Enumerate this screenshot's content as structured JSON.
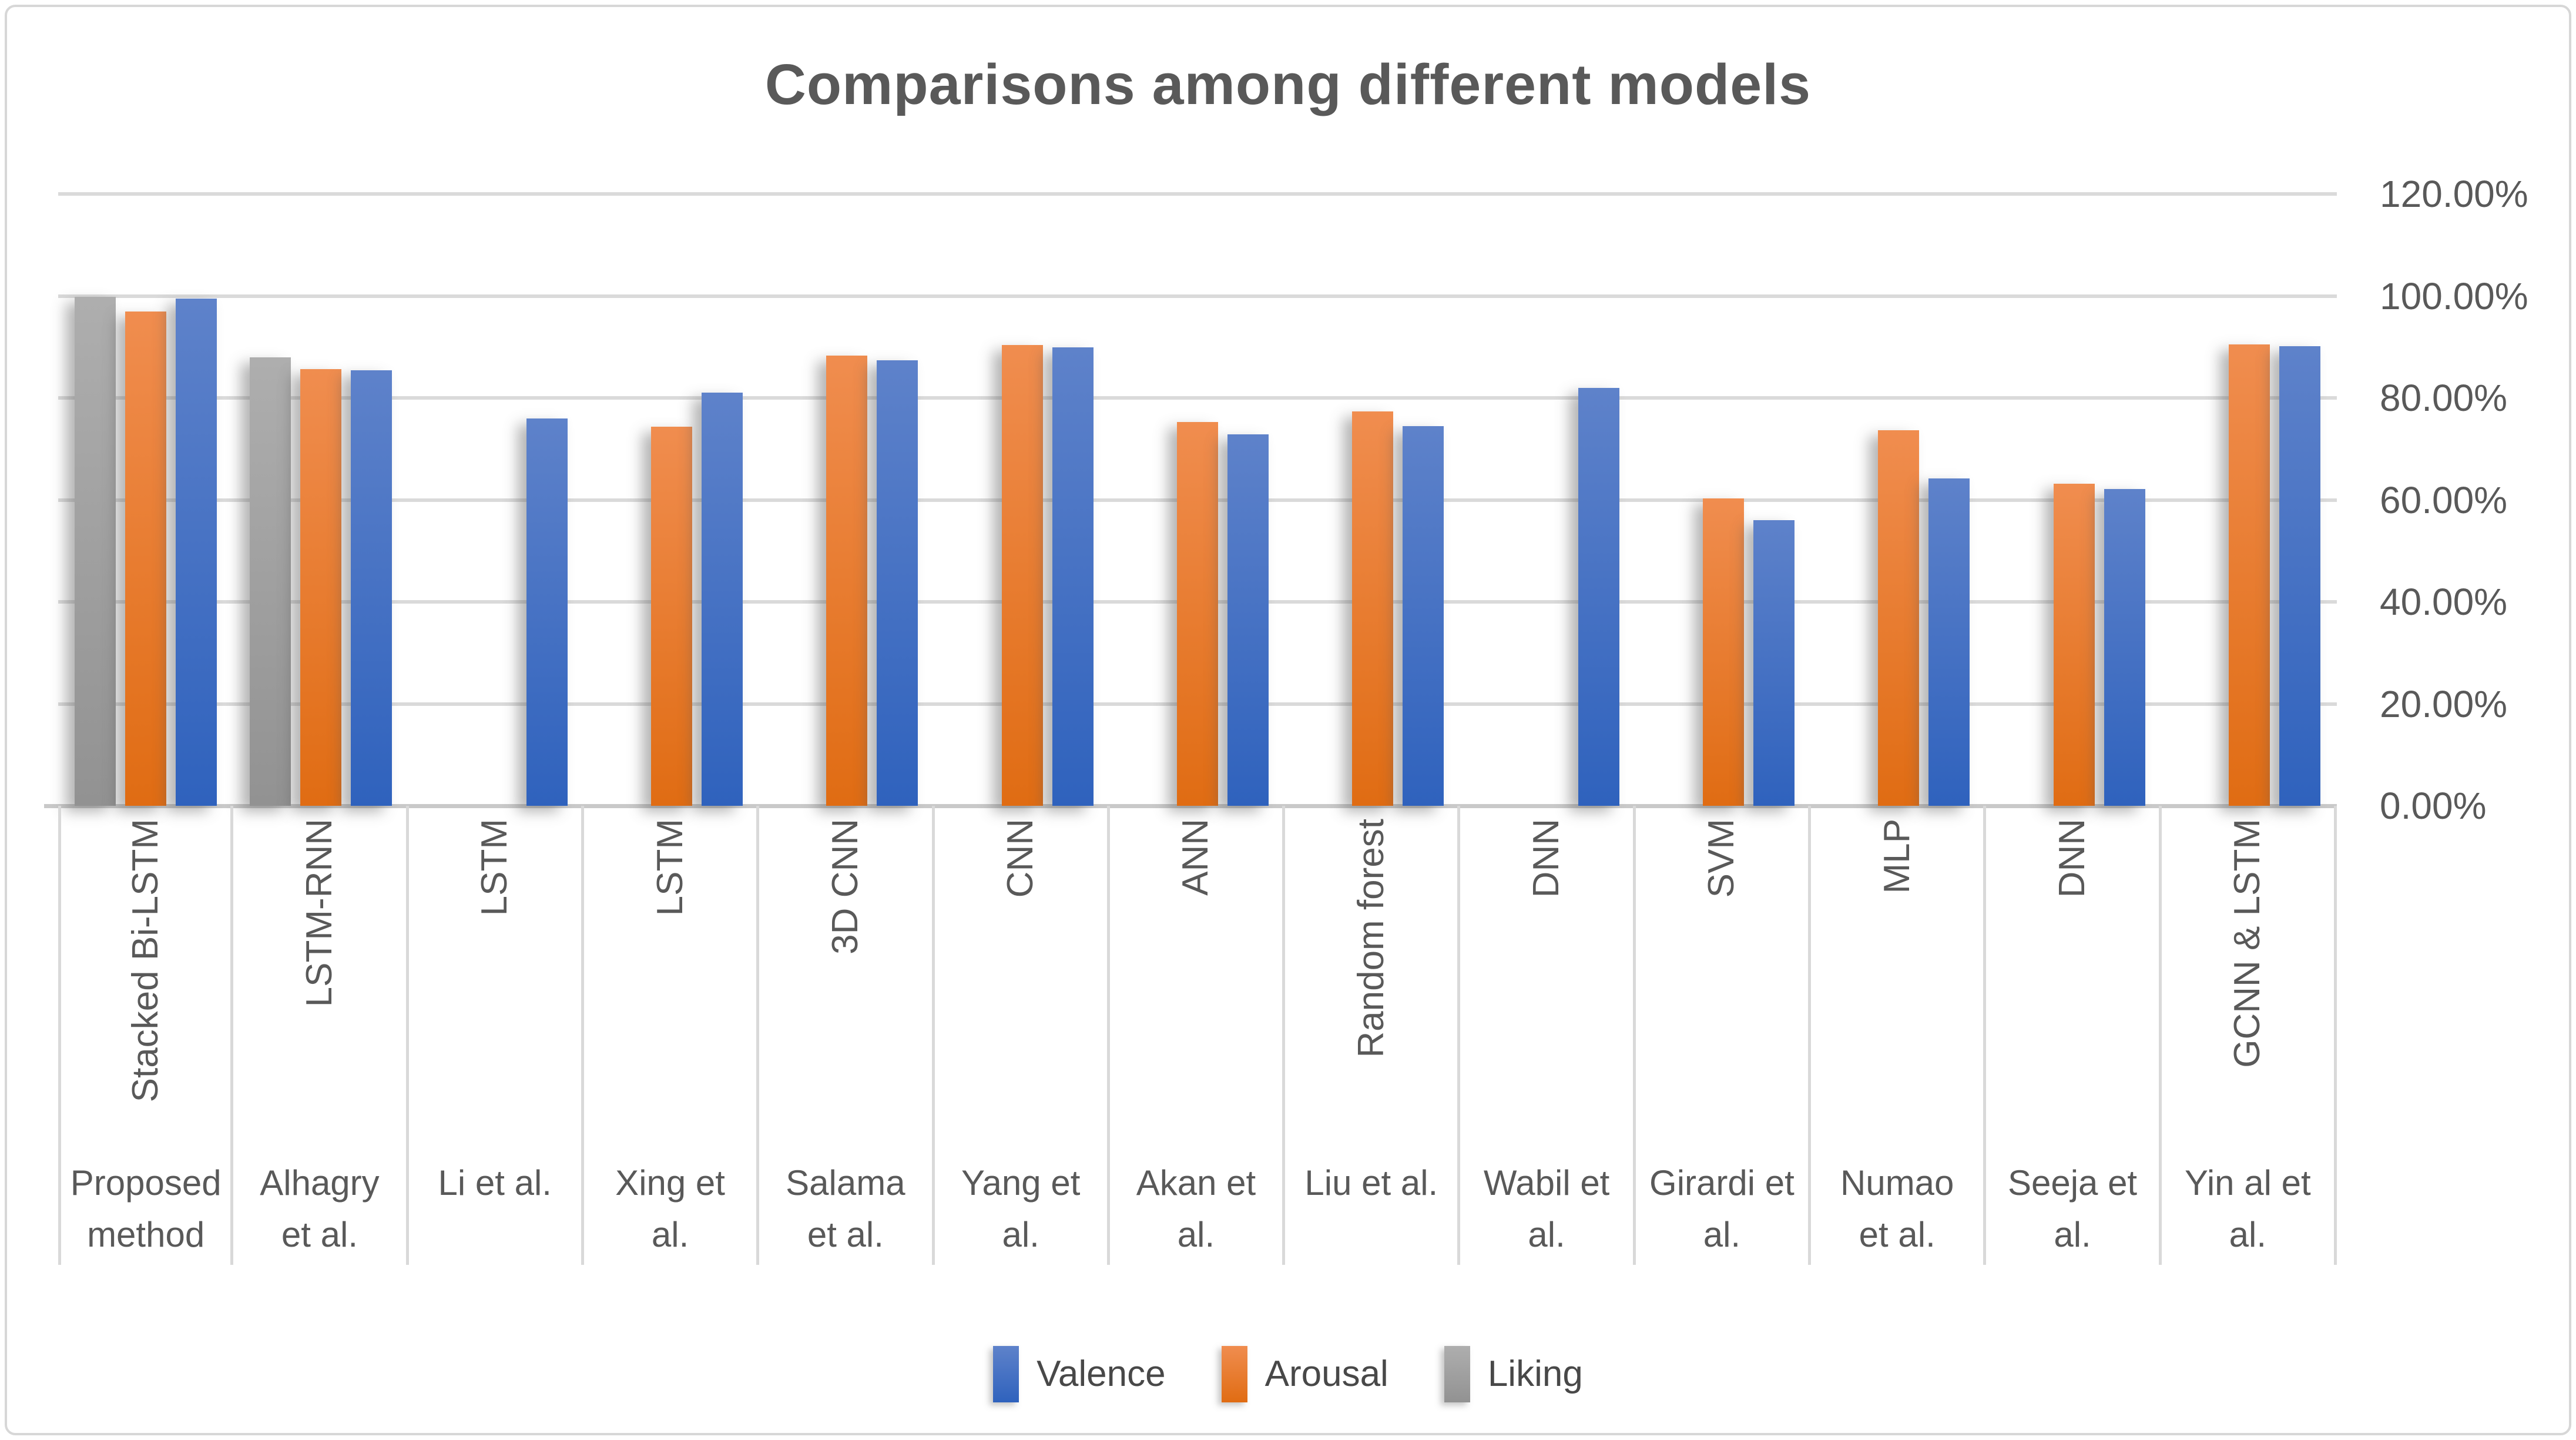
{
  "chart_data": {
    "type": "bar",
    "title": "Comparisons among different models",
    "categories": [
      "Proposed method",
      "Alhagry et al.",
      "Li et al.",
      "Xing et al.",
      "Salama et al.",
      "Yang et al.",
      "Akan et al.",
      "Liu et al.",
      "Wabil et al.",
      "Girardi et al.",
      "Numao et al.",
      "Seeja et al.",
      "Yin al et al."
    ],
    "category_methods": [
      "Stacked Bi-LSTM",
      "LSTM-RNN",
      "LSTM",
      "LSTM",
      "3D CNN",
      "CNN",
      "ANN",
      "Random forest",
      "DNN",
      "SVM",
      "MLP",
      "DNN",
      "GCNN & LSTM"
    ],
    "series": [
      {
        "name": "Valence",
        "color": "#3e68c0",
        "values": [
          99.5,
          85.4,
          76.0,
          81.0,
          87.4,
          89.9,
          72.9,
          74.5,
          82.0,
          56.0,
          64.2,
          62.1,
          90.2
        ]
      },
      {
        "name": "Arousal",
        "color": "#e9731b",
        "values": [
          96.9,
          85.6,
          null,
          74.4,
          88.3,
          90.4,
          75.3,
          77.3,
          null,
          60.3,
          73.7,
          63.2,
          90.5
        ]
      },
      {
        "name": "Liking",
        "color": "#a6a6a6",
        "values": [
          99.8,
          88.0,
          null,
          null,
          null,
          null,
          null,
          null,
          null,
          null,
          null,
          null,
          null
        ]
      }
    ],
    "series_draw_order": [
      "Liking",
      "Arousal",
      "Valence"
    ],
    "xlabel": "",
    "ylabel": "",
    "ylim": [
      0,
      120
    ],
    "y_tick_step": 20,
    "y_tick_labels": [
      "120.00%",
      "100.00%",
      "80.00%",
      "60.00%",
      "40.00%",
      "20.00%",
      "0.00%"
    ],
    "y_axis_side": "right",
    "grid": true,
    "legend_position": "bottom",
    "value_format": "percent"
  },
  "x_axis": {
    "method_labels": [
      "Stacked Bi-LSTM",
      "LSTM-RNN",
      "LSTM",
      "LSTM",
      "3D CNN",
      "CNN",
      "ANN",
      "Random forest",
      "DNN",
      "SVM",
      "MLP",
      "DNN",
      "GCNN & LSTM"
    ],
    "author_labels": [
      "Proposed\nmethod",
      "Alhagry\net al.",
      "Li et al.",
      "Xing et\nal.",
      "Salama\net al.",
      "Yang et\nal.",
      "Akan et\nal.",
      "Liu et al.",
      "Wabil et\nal.",
      "Girardi et\nal.",
      "Numao\net al.",
      "Seeja et\nal.",
      "Yin al et\nal."
    ]
  },
  "style": {
    "title_color": "#595959",
    "text_color": "#595959",
    "grid_color": "#dadada",
    "axis_color": "#c9c9c9",
    "valence_gradient_top": "#5e82ca",
    "valence_gradient_bottom": "#2f62bd",
    "arousal_gradient_top": "#f08d4f",
    "arousal_gradient_bottom": "#e06c13",
    "liking_gradient_top": "#aeaeae",
    "liking_gradient_bottom": "#929292"
  }
}
